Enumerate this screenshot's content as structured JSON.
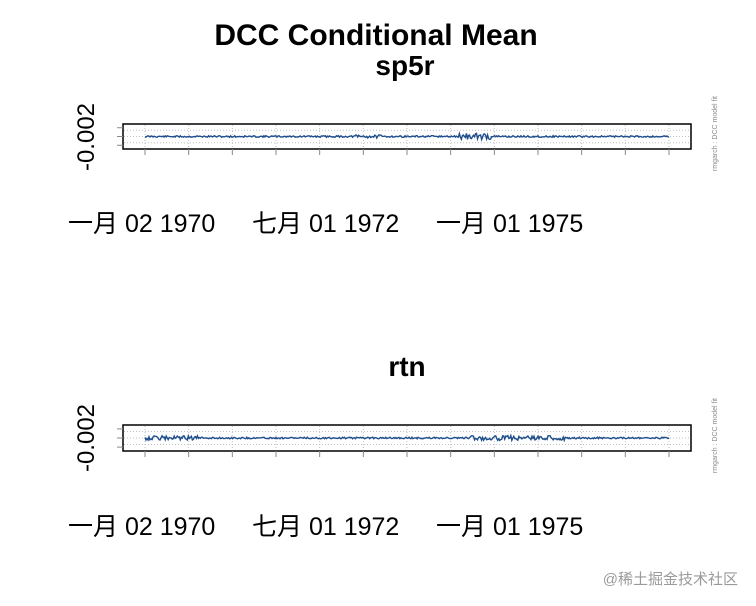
{
  "title": "DCC Conditional Mean",
  "watermark": "@稀土掘金技术社区",
  "side_note": "rmgarch : DCC model fit",
  "colors": {
    "series": "#1f4e8c",
    "grid": "#bfbfbf",
    "frame": "#000000"
  },
  "chart_data": [
    {
      "type": "line",
      "title": "sp5r",
      "ytick_labels": [
        "-0.002"
      ],
      "xtick_labels": [
        "一月 02 1970",
        "七月 01 1972",
        "一月 01 1975"
      ],
      "grid": true,
      "series_color": "#1f4e8c",
      "note": "conditional mean series near constant level with small fluctuations"
    },
    {
      "type": "line",
      "title": "rtn",
      "ytick_labels": [
        "-0.002"
      ],
      "xtick_labels": [
        "一月 02 1970",
        "七月 01 1972",
        "一月 01 1975"
      ],
      "grid": true,
      "series_color": "#1f4e8c"
    }
  ]
}
